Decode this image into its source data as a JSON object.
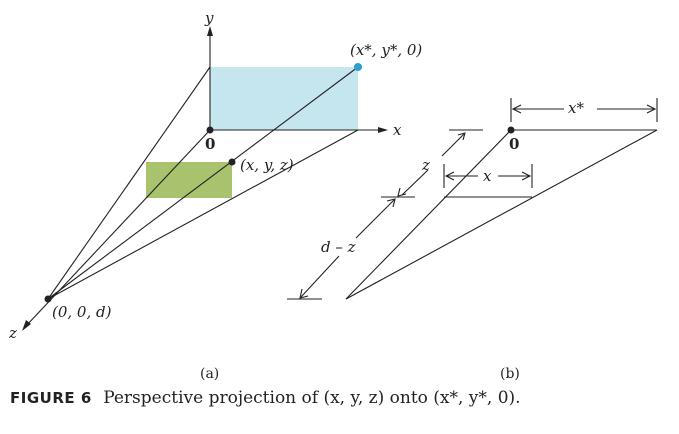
{
  "labels": {
    "x_axis": "x",
    "y_axis": "y",
    "z_axis": "z",
    "origin_a": "0",
    "origin_b": "0",
    "point_projected": "(x*, y*, 0)",
    "point_object": "(x, y, z)",
    "point_eye": "(0, 0, d)",
    "dim_x_star": "x*",
    "dim_x": "x",
    "dim_z": "z",
    "dim_d_minus_z": "d – z",
    "panel_a": "(a)",
    "panel_b": "(b)"
  },
  "caption": {
    "figure_label": "FIGURE 6",
    "text": "Perspective projection of (x, y, z) onto (x*, y*, 0)."
  },
  "colors": {
    "projection_plane": "#c5e5ef",
    "object_region": "#a9c26e",
    "projected_point": "#2b9fd0",
    "ink": "#222222"
  }
}
